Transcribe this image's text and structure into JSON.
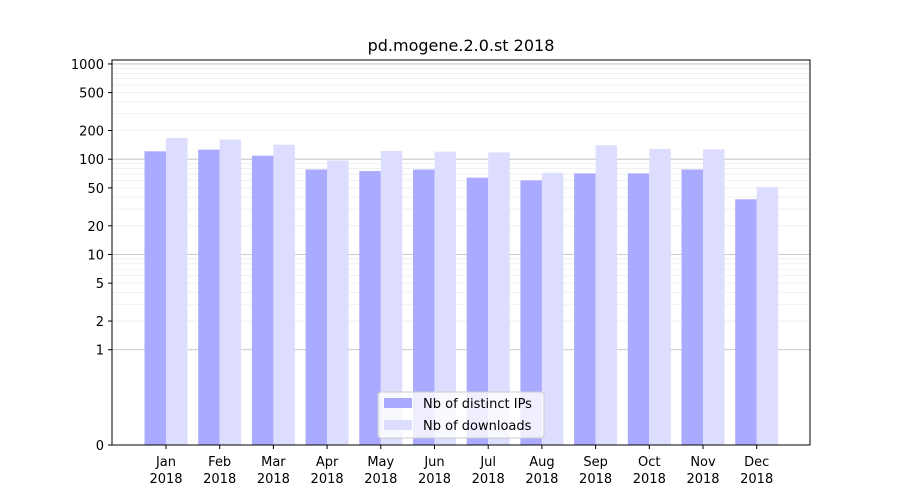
{
  "chart_data": {
    "type": "bar",
    "title": "pd.mogene.2.0.st 2018",
    "xlabel": "",
    "ylabel": "",
    "scale": "symlog",
    "grid": true,
    "legend_position": "bottom-center",
    "categories": [
      [
        "Jan",
        "2018"
      ],
      [
        "Feb",
        "2018"
      ],
      [
        "Mar",
        "2018"
      ],
      [
        "Apr",
        "2018"
      ],
      [
        "May",
        "2018"
      ],
      [
        "Jun",
        "2018"
      ],
      [
        "Jul",
        "2018"
      ],
      [
        "Aug",
        "2018"
      ],
      [
        "Sep",
        "2018"
      ],
      [
        "Oct",
        "2018"
      ],
      [
        "Nov",
        "2018"
      ],
      [
        "Dec",
        "2018"
      ]
    ],
    "yticks": [
      0,
      1,
      2,
      5,
      10,
      20,
      50,
      100,
      200,
      500,
      1000
    ],
    "series": [
      {
        "name": "Nb of distinct IPs",
        "color": "#aaaaff",
        "values": [
          121,
          126,
          109,
          78,
          75,
          78,
          64,
          60,
          71,
          71,
          78,
          38
        ]
      },
      {
        "name": "Nb of downloads",
        "color": "#ddddff",
        "values": [
          167,
          161,
          142,
          97,
          122,
          120,
          118,
          72,
          140,
          128,
          127,
          51
        ]
      }
    ]
  }
}
